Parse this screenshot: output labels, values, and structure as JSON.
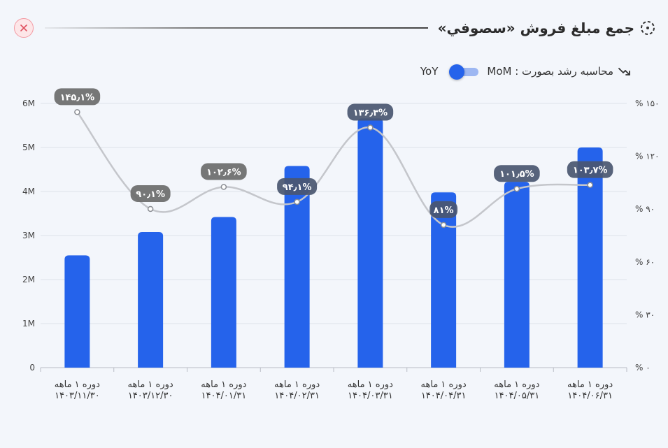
{
  "header": {
    "title": "جمع مبلغ فروش «سصوفي»",
    "title_icon": "dashed-circle-icon",
    "close_icon": "close-icon"
  },
  "toggle": {
    "label": "محاسبه رشد بصورت : MoM",
    "alt_label": "YoY",
    "icon": "trending-up-icon",
    "selected": "MoM"
  },
  "colors": {
    "bar": "#2563eb",
    "line": "#c4c6cb",
    "label_bg": "#6b6b6b",
    "label_bg_dark": "#4a5670",
    "grid": "#dde1e8"
  },
  "chart_data": {
    "type": "bar",
    "categories": [
      [
        "دوره ۱ ماهه",
        "۱۴۰۳/۱۱/۳۰"
      ],
      [
        "دوره ۱ ماهه",
        "۱۴۰۳/۱۲/۳۰"
      ],
      [
        "دوره ۱ ماهه",
        "۱۴۰۴/۰۱/۳۱"
      ],
      [
        "دوره ۱ ماهه",
        "۱۴۰۴/۰۲/۳۱"
      ],
      [
        "دوره ۱ ماهه",
        "۱۴۰۴/۰۳/۳۱"
      ],
      [
        "دوره ۱ ماهه",
        "۱۴۰۴/۰۴/۳۱"
      ],
      [
        "دوره ۱ ماهه",
        "۱۴۰۴/۰۵/۳۱"
      ],
      [
        "دوره ۱ ماهه",
        "۱۴۰۴/۰۶/۳۱"
      ]
    ],
    "series": [
      {
        "type": "bar",
        "axis": "left",
        "values": [
          2550000,
          3080000,
          3420000,
          4580000,
          5660000,
          3980000,
          4220000,
          5000000
        ]
      },
      {
        "type": "line",
        "axis": "right",
        "values": [
          145.1,
          90.1,
          102.6,
          94.1,
          136.3,
          81,
          101.5,
          103.7
        ],
        "labels": [
          "۱۴۵٫۱%",
          "۹۰٫۱%",
          "۱۰۲٫۶%",
          "۹۴٫۱%",
          "۱۳۶٫۳%",
          "۸۱%",
          "۱۰۱٫۵%",
          "۱۰۳٫۷%"
        ]
      }
    ],
    "left_axis": {
      "ylim": [
        0,
        6000000
      ],
      "ticks": [
        0,
        1000000,
        2000000,
        3000000,
        4000000,
        5000000,
        6000000
      ],
      "tick_labels": [
        "0",
        "1M",
        "2M",
        "3M",
        "4M",
        "5M",
        "6M"
      ]
    },
    "right_axis": {
      "ylim": [
        0,
        150
      ],
      "ticks": [
        0,
        30,
        60,
        90,
        120,
        150
      ],
      "tick_labels": [
        "% ۰",
        "% ۳۰",
        "% ۶۰",
        "% ۹۰",
        "% ۱۲۰",
        "% ۱۵۰"
      ]
    },
    "grid": true,
    "legend": "none"
  }
}
